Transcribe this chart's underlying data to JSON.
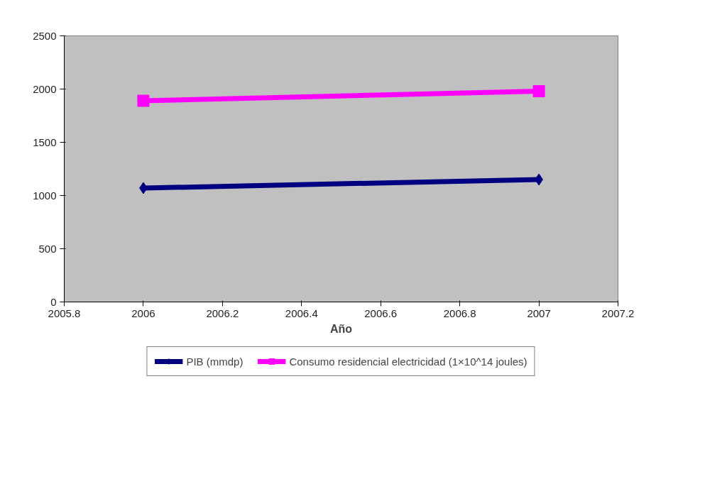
{
  "chart_data": {
    "type": "line",
    "xlabel": "Año",
    "x": [
      2006,
      2007
    ],
    "series": [
      {
        "name": "PIB (mmdp)",
        "color": "#000080",
        "values": [
          1070,
          1150
        ],
        "marker": "diamond"
      },
      {
        "name": "Consumo residencial electricidad (1×10^14 joules)",
        "color": "#ff00ff",
        "values": [
          1890,
          1980
        ],
        "marker": "square"
      }
    ],
    "xlim": [
      2005.8,
      2007.2
    ],
    "xticks": [
      2005.8,
      2006,
      2006.2,
      2006.4,
      2006.6,
      2006.8,
      2007,
      2007.2
    ],
    "ylim": [
      0,
      2500
    ],
    "yticks": [
      0,
      500,
      1000,
      1500,
      2000,
      2500
    ],
    "grid": false,
    "legend": "bottom",
    "line_style": "solid"
  }
}
